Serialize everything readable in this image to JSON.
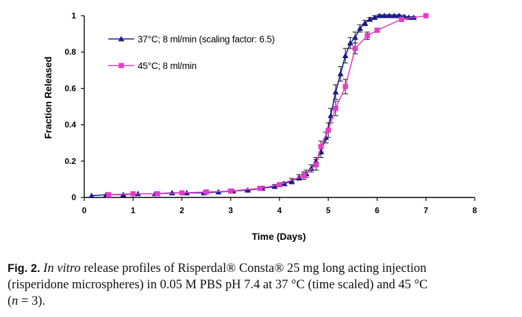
{
  "chart_data": {
    "type": "line",
    "xlabel": "Time (Days)",
    "ylabel": "Fraction Released",
    "xlim": [
      0,
      8
    ],
    "ylim": [
      0,
      1
    ],
    "x_ticks": [
      "0",
      "1",
      "2",
      "3",
      "4",
      "5",
      "6",
      "7",
      "8"
    ],
    "y_ticks": [
      "0",
      "0.2",
      "0.4",
      "0.6",
      "0.8",
      "1"
    ],
    "grid": false,
    "legend_position": "top-left",
    "series": [
      {
        "name": "37°C; 8 ml/min (scaling factor: 6.5)",
        "color": "#1a1a8c",
        "marker": "triangle",
        "x": [
          0.15,
          0.45,
          0.8,
          1.1,
          1.45,
          1.8,
          2.1,
          2.45,
          2.75,
          3.05,
          3.35,
          3.65,
          3.9,
          4.1,
          4.25,
          4.4,
          4.55,
          4.65,
          4.75,
          4.85,
          4.95,
          5.05,
          5.15,
          5.25,
          5.35,
          5.45,
          5.55,
          5.65,
          5.75,
          5.85,
          5.95,
          6.05,
          6.15,
          6.25,
          6.35,
          6.45,
          6.55,
          6.65,
          6.75
        ],
        "y": [
          0.01,
          0.015,
          0.015,
          0.02,
          0.02,
          0.025,
          0.025,
          0.025,
          0.03,
          0.035,
          0.04,
          0.05,
          0.06,
          0.075,
          0.09,
          0.11,
          0.13,
          0.16,
          0.2,
          0.25,
          0.33,
          0.45,
          0.58,
          0.68,
          0.78,
          0.85,
          0.88,
          0.93,
          0.96,
          0.98,
          0.99,
          1.0,
          1.0,
          1.0,
          1.0,
          1.0,
          0.995,
          0.99,
          0.99
        ],
        "error": [
          0,
          0,
          0,
          0,
          0,
          0,
          0,
          0,
          0,
          0,
          0.005,
          0.01,
          0.01,
          0.01,
          0.015,
          0.015,
          0.02,
          0.02,
          0.02,
          0.03,
          0.03,
          0.04,
          0.04,
          0.04,
          0.04,
          0.03,
          0.03,
          0.02,
          0.015,
          0.01,
          0.01,
          0.005,
          0.005,
          0.005,
          0.005,
          0.005,
          0.005,
          0.005,
          0.005
        ]
      },
      {
        "name": "45°C; 8 ml/min",
        "color": "#e63cc8",
        "marker": "square",
        "x": [
          0.5,
          1.0,
          1.5,
          2.0,
          2.5,
          3.0,
          3.6,
          4.0,
          4.5,
          4.75,
          4.85,
          5.0,
          5.15,
          5.35,
          5.55,
          5.8,
          6.0,
          6.5,
          7.0
        ],
        "y": [
          0.015,
          0.02,
          0.02,
          0.025,
          0.03,
          0.035,
          0.05,
          0.07,
          0.12,
          0.18,
          0.28,
          0.37,
          0.49,
          0.61,
          0.82,
          0.89,
          0.92,
          0.98,
          1.0
        ],
        "error": [
          0,
          0,
          0,
          0,
          0,
          0.005,
          0.01,
          0.01,
          0.02,
          0.03,
          0.03,
          0.04,
          0.04,
          0.04,
          0.03,
          0.02,
          0.01,
          0.005,
          0
        ]
      }
    ]
  },
  "caption": {
    "label": "Fig. 2.",
    "italic_intro": "In vitro",
    "line1_rest": "release profiles of Risperdal® Consta® 25 mg long acting injection",
    "line2": "(risperidone microspheres) in 0.05 M PBS pH 7.4 at 37 °C (time scaled) and 45 °C",
    "n_var": "n",
    "n_rest": " = 3)."
  }
}
